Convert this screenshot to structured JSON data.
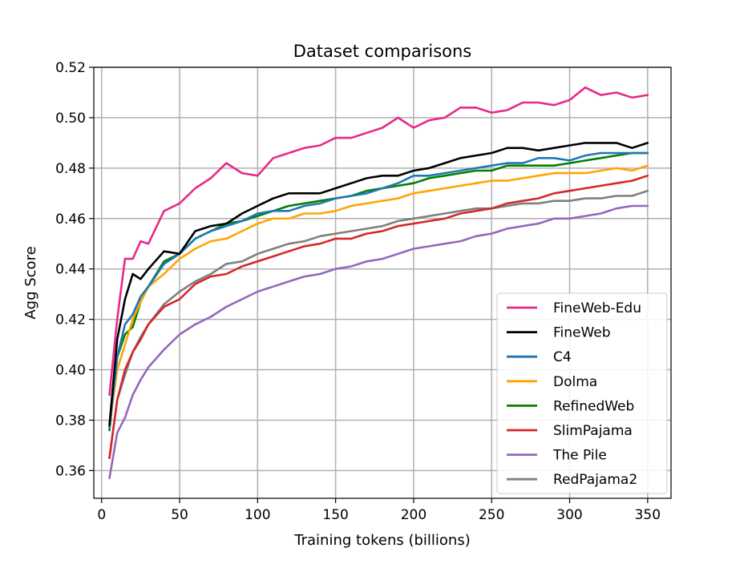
{
  "chart_data": {
    "type": "line",
    "title": "Dataset comparisons",
    "xlabel": "Training tokens (billions)",
    "ylabel": "Agg Score",
    "xlim": [
      -5,
      365
    ],
    "ylim": [
      0.349,
      0.52
    ],
    "xticks": [
      0,
      50,
      100,
      150,
      200,
      250,
      300,
      350
    ],
    "yticks": [
      0.36,
      0.38,
      0.4,
      0.42,
      0.44,
      0.46,
      0.48,
      0.5,
      0.52
    ],
    "ytick_labels": [
      "0.36",
      "0.38",
      "0.40",
      "0.42",
      "0.44",
      "0.46",
      "0.48",
      "0.50",
      "0.52"
    ],
    "xtick_labels": [
      "0",
      "50",
      "100",
      "150",
      "200",
      "250",
      "300",
      "350"
    ],
    "grid": true,
    "legend_position": "lower-right",
    "x": [
      5,
      10,
      15,
      20,
      25,
      30,
      40,
      50,
      60,
      70,
      80,
      90,
      100,
      110,
      120,
      130,
      140,
      150,
      160,
      170,
      180,
      190,
      200,
      210,
      220,
      230,
      240,
      250,
      260,
      270,
      280,
      290,
      300,
      310,
      320,
      330,
      340,
      350
    ],
    "series": [
      {
        "name": "FineWeb-Edu",
        "color": "#e7298a",
        "values": [
          0.39,
          0.42,
          0.444,
          0.444,
          0.451,
          0.45,
          0.463,
          0.466,
          0.472,
          0.476,
          0.482,
          0.478,
          0.477,
          0.484,
          0.486,
          0.488,
          0.489,
          0.492,
          0.492,
          0.494,
          0.496,
          0.5,
          0.496,
          0.499,
          0.5,
          0.504,
          0.504,
          0.502,
          0.503,
          0.506,
          0.506,
          0.505,
          0.507,
          0.512,
          0.509,
          0.51,
          0.508,
          0.509
        ]
      },
      {
        "name": "FineWeb",
        "color": "#000000",
        "values": [
          0.378,
          0.412,
          0.428,
          0.438,
          0.436,
          0.44,
          0.447,
          0.446,
          0.455,
          0.457,
          0.458,
          0.462,
          0.465,
          0.468,
          0.47,
          0.47,
          0.47,
          0.472,
          0.474,
          0.476,
          0.477,
          0.477,
          0.479,
          0.48,
          0.482,
          0.484,
          0.485,
          0.486,
          0.488,
          0.488,
          0.487,
          0.488,
          0.489,
          0.49,
          0.49,
          0.49,
          0.488,
          0.49
        ]
      },
      {
        "name": "C4",
        "color": "#1f77b4",
        "values": [
          0.377,
          0.405,
          0.418,
          0.422,
          0.429,
          0.433,
          0.442,
          0.446,
          0.452,
          0.455,
          0.457,
          0.459,
          0.462,
          0.463,
          0.463,
          0.465,
          0.466,
          0.468,
          0.469,
          0.47,
          0.472,
          0.474,
          0.477,
          0.477,
          0.478,
          0.479,
          0.48,
          0.481,
          0.482,
          0.482,
          0.484,
          0.484,
          0.483,
          0.485,
          0.486,
          0.486,
          0.486,
          0.486
        ]
      },
      {
        "name": "Dolma",
        "color": "#ffa500",
        "values": [
          0.378,
          0.4,
          0.41,
          0.42,
          0.427,
          0.433,
          0.438,
          0.444,
          0.448,
          0.451,
          0.452,
          0.455,
          0.458,
          0.46,
          0.46,
          0.462,
          0.462,
          0.463,
          0.465,
          0.466,
          0.467,
          0.468,
          0.47,
          0.471,
          0.472,
          0.473,
          0.474,
          0.475,
          0.475,
          0.476,
          0.477,
          0.478,
          0.478,
          0.478,
          0.479,
          0.48,
          0.479,
          0.481
        ]
      },
      {
        "name": "RefinedWeb",
        "color": "#008000",
        "values": [
          0.376,
          0.405,
          0.414,
          0.417,
          0.427,
          0.433,
          0.443,
          0.446,
          0.452,
          0.455,
          0.458,
          0.459,
          0.461,
          0.463,
          0.465,
          0.466,
          0.467,
          0.468,
          0.469,
          0.471,
          0.472,
          0.473,
          0.474,
          0.476,
          0.477,
          0.478,
          0.479,
          0.479,
          0.481,
          0.481,
          0.481,
          0.481,
          0.482,
          0.483,
          0.484,
          0.485,
          0.486,
          0.486
        ]
      },
      {
        "name": "SlimPajama",
        "color": "#d62728",
        "values": [
          0.365,
          0.388,
          0.4,
          0.407,
          0.412,
          0.418,
          0.425,
          0.428,
          0.434,
          0.437,
          0.438,
          0.441,
          0.443,
          0.445,
          0.447,
          0.449,
          0.45,
          0.452,
          0.452,
          0.454,
          0.455,
          0.457,
          0.458,
          0.459,
          0.46,
          0.462,
          0.463,
          0.464,
          0.466,
          0.467,
          0.468,
          0.47,
          0.471,
          0.472,
          0.473,
          0.474,
          0.475,
          0.477
        ]
      },
      {
        "name": "The Pile",
        "color": "#9467bd",
        "values": [
          0.357,
          0.375,
          0.381,
          0.39,
          0.396,
          0.401,
          0.408,
          0.414,
          0.418,
          0.421,
          0.425,
          0.428,
          0.431,
          0.433,
          0.435,
          0.437,
          0.438,
          0.44,
          0.441,
          0.443,
          0.444,
          0.446,
          0.448,
          0.449,
          0.45,
          0.451,
          0.453,
          0.454,
          0.456,
          0.457,
          0.458,
          0.46,
          0.46,
          0.461,
          0.462,
          0.464,
          0.465,
          0.465
        ]
      },
      {
        "name": "RedPajama2",
        "color": "#7f7f7f",
        "values": [
          0.365,
          0.388,
          0.398,
          0.407,
          0.413,
          0.418,
          0.426,
          0.431,
          0.435,
          0.438,
          0.442,
          0.443,
          0.446,
          0.448,
          0.45,
          0.451,
          0.453,
          0.454,
          0.455,
          0.456,
          0.457,
          0.459,
          0.46,
          0.461,
          0.462,
          0.463,
          0.464,
          0.464,
          0.465,
          0.466,
          0.466,
          0.467,
          0.467,
          0.468,
          0.468,
          0.469,
          0.469,
          0.471
        ]
      }
    ]
  }
}
